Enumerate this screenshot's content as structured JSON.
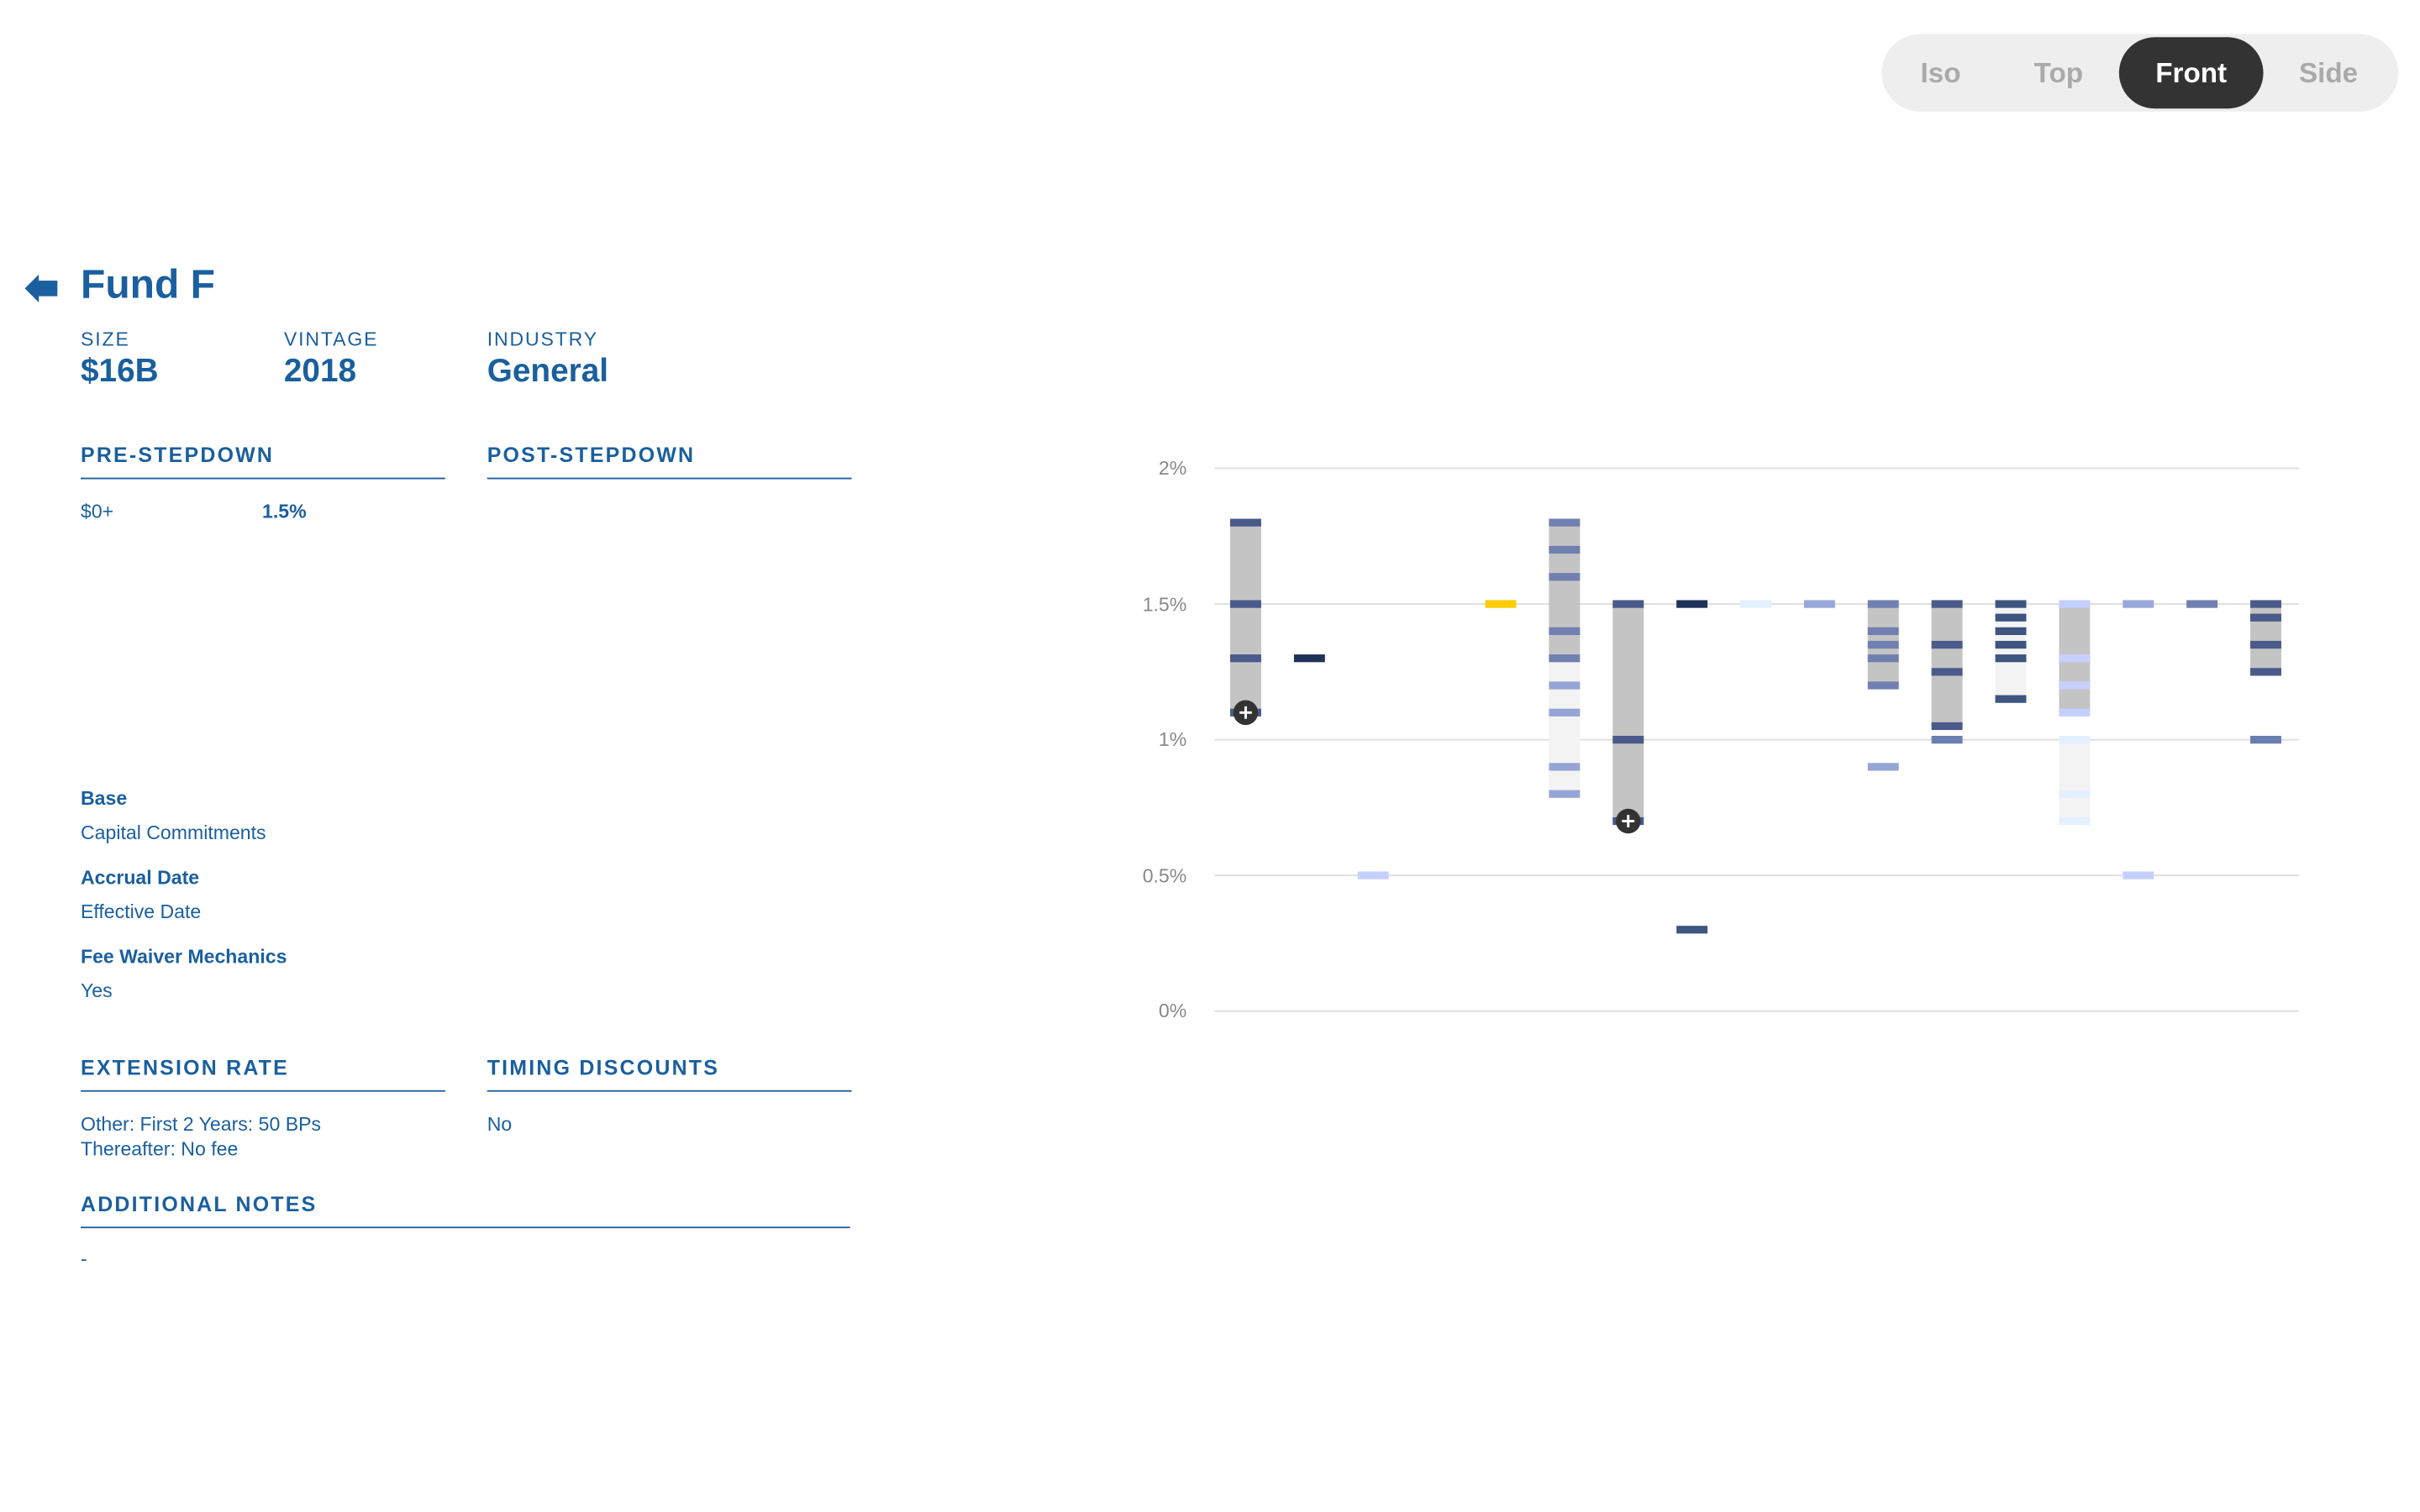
{
  "view_toggle": {
    "options": [
      "Iso",
      "Top",
      "Front",
      "Side"
    ],
    "active": "Front"
  },
  "fund": {
    "title": "Fund F",
    "size_label": "SIZE",
    "size": "$16B",
    "vintage_label": "VINTAGE",
    "vintage": "2018",
    "industry_label": "INDUSTRY",
    "industry": "General"
  },
  "pre_stepdown": {
    "heading": "PRE-STEPDOWN",
    "rows": [
      {
        "threshold": "$0+",
        "rate": "1.5%"
      }
    ]
  },
  "post_stepdown": {
    "heading": "POST-STEPDOWN"
  },
  "details": [
    {
      "label": "Base",
      "value": "Capital Commitments"
    },
    {
      "label": "Accrual Date",
      "value": "Effective Date"
    },
    {
      "label": "Fee Waiver Mechanics",
      "value": "Yes"
    }
  ],
  "extension_rate": {
    "heading": "EXTENSION RATE",
    "line1": "Other: First 2 Years: 50 BPs",
    "line2": "Thereafter: No fee"
  },
  "timing_discounts": {
    "heading": "TIMING DISCOUNTS",
    "value": "No"
  },
  "additional_notes": {
    "heading": "ADDITIONAL NOTES",
    "value": "-"
  },
  "colors": {
    "text": "#1a5f9e",
    "range": "#c4c4c4",
    "range_light": "#f3f3f3",
    "highlight": "#ffcc00"
  },
  "chart_data": {
    "type": "range-strip",
    "ylim": [
      0,
      2
    ],
    "yticks": [
      "0%",
      "0.5%",
      "1%",
      "1.5%",
      "2%"
    ],
    "ytick_values": [
      0,
      0.5,
      1,
      1.5,
      2
    ],
    "grid": true,
    "columns": [
      {
        "ranges": [
          [
            1.1,
            1.8,
            "#c4c4c4"
          ]
        ],
        "markers": [
          [
            1.8,
            "#4a5a8a"
          ],
          [
            1.5,
            "#4a5a8a"
          ],
          [
            1.3,
            "#4a5a8a"
          ],
          [
            1.1,
            "#4a5a8a"
          ]
        ],
        "expand": 1.1
      },
      {
        "ranges": [],
        "markers": [
          [
            1.3,
            "#1f3259"
          ]
        ]
      },
      {
        "ranges": [],
        "markers": [
          [
            0.5,
            "#c5d0ff"
          ]
        ]
      },
      {
        "ranges": [],
        "markers": []
      },
      {
        "ranges": [],
        "markers": [
          [
            1.5,
            "#ffcc00"
          ]
        ]
      },
      {
        "ranges": [
          [
            1.3,
            1.8,
            "#c4c4c4"
          ],
          [
            0.8,
            1.3,
            "#f3f3f3"
          ]
        ],
        "markers": [
          [
            1.8,
            "#7080b0"
          ],
          [
            1.7,
            "#7080b0"
          ],
          [
            1.6,
            "#7080b0"
          ],
          [
            1.4,
            "#7080b0"
          ],
          [
            1.3,
            "#7080b0"
          ],
          [
            1.2,
            "#95a5d5"
          ],
          [
            1.1,
            "#95a5d5"
          ],
          [
            0.9,
            "#95a5d5"
          ],
          [
            0.8,
            "#95a5d5"
          ]
        ]
      },
      {
        "ranges": [
          [
            0.7,
            1.5,
            "#c4c4c4"
          ]
        ],
        "markers": [
          [
            1.5,
            "#4a5a8a"
          ],
          [
            1.0,
            "#4a5a8a"
          ],
          [
            0.7,
            "#4a5a8a"
          ]
        ],
        "expand": 0.7
      },
      {
        "ranges": [],
        "markers": [
          [
            1.5,
            "#1f3259"
          ],
          [
            0.3,
            "#3e5580"
          ]
        ]
      },
      {
        "ranges": [],
        "markers": [
          [
            1.5,
            "#e3f0ff"
          ]
        ]
      },
      {
        "ranges": [],
        "markers": [
          [
            1.5,
            "#98a8da"
          ]
        ]
      },
      {
        "ranges": [
          [
            1.2,
            1.5,
            "#c4c4c4"
          ]
        ],
        "markers": [
          [
            1.5,
            "#7080b0"
          ],
          [
            1.4,
            "#7080b0"
          ],
          [
            1.35,
            "#7080b0"
          ],
          [
            1.3,
            "#7080b0"
          ],
          [
            1.2,
            "#7080b0"
          ],
          [
            0.9,
            "#95a5d5"
          ]
        ]
      },
      {
        "ranges": [
          [
            1.05,
            1.5,
            "#c4c4c4"
          ]
        ],
        "markers": [
          [
            1.5,
            "#4a5a8a"
          ],
          [
            1.35,
            "#4a5a8a"
          ],
          [
            1.25,
            "#4a5a8a"
          ],
          [
            1.05,
            "#4a5a8a"
          ],
          [
            1.0,
            "#6a7eb0"
          ]
        ]
      },
      {
        "ranges": [
          [
            1.15,
            1.5,
            "#f3f3f3"
          ]
        ],
        "markers": [
          [
            1.5,
            "#3e5580"
          ],
          [
            1.45,
            "#3e5580"
          ],
          [
            1.4,
            "#3e5580"
          ],
          [
            1.35,
            "#3e5580"
          ],
          [
            1.3,
            "#3e5580"
          ],
          [
            1.15,
            "#3e5580"
          ]
        ]
      },
      {
        "ranges": [
          [
            1.1,
            1.5,
            "#c4c4c4"
          ],
          [
            0.7,
            1.0,
            "#f3f3f3"
          ]
        ],
        "markers": [
          [
            1.5,
            "#c5d0ff"
          ],
          [
            1.3,
            "#c5d0ff"
          ],
          [
            1.2,
            "#c5d0ff"
          ],
          [
            1.1,
            "#c5d0ff"
          ],
          [
            1.0,
            "#e3f0ff"
          ],
          [
            0.8,
            "#e3f0ff"
          ],
          [
            0.7,
            "#e3f0ff"
          ]
        ]
      },
      {
        "ranges": [],
        "markers": [
          [
            1.5,
            "#98a8da"
          ],
          [
            0.5,
            "#c5d0ff"
          ]
        ]
      },
      {
        "ranges": [],
        "markers": [
          [
            1.5,
            "#7080b0"
          ]
        ]
      },
      {
        "ranges": [
          [
            1.25,
            1.5,
            "#c4c4c4"
          ]
        ],
        "markers": [
          [
            1.5,
            "#4a5a8a"
          ],
          [
            1.45,
            "#4a5a8a"
          ],
          [
            1.35,
            "#4a5a8a"
          ],
          [
            1.25,
            "#4a5a8a"
          ],
          [
            1.0,
            "#6a7eb0"
          ]
        ]
      }
    ]
  }
}
